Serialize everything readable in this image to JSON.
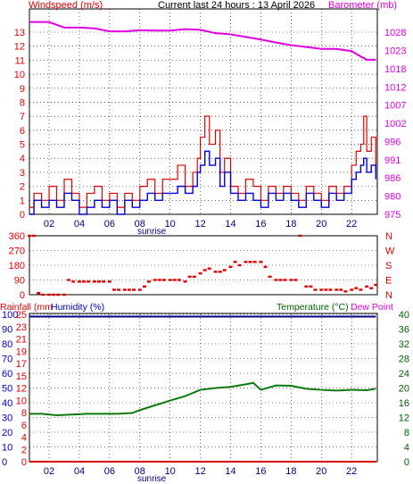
{
  "header": {
    "left_title": "Windspeed (m/s)",
    "center_title": "Current last 24 hours : 13 April 2026",
    "right_title": "Barometer (mb)"
  },
  "middle_panel": {
    "left_ticks": [
      "360",
      "270",
      "180",
      "90",
      "0"
    ],
    "right_ticks": [
      "N",
      "W",
      "S",
      "E",
      "N"
    ]
  },
  "bottom_header": {
    "rainfall": "Rainfall (mm",
    "humidity": "Humidity (%)",
    "temperature": "Temperature (°C)",
    "dew_point": "Dew Point"
  },
  "sunrise_label": "sunrise",
  "colors": {
    "wind_gust": "#e00000",
    "wind_avg": "#0000d8",
    "barometer": "#e000e0",
    "direction": "#e00000",
    "humidity": "#000080",
    "temperature": "#0c7a0c",
    "rainfall": "#e00000",
    "humidity_label": "#0000c0",
    "temperature_label": "#006000",
    "dew_label": "#e000e0",
    "grid": "#000000"
  },
  "chart_data": [
    {
      "type": "line",
      "x_ticks": [
        "02",
        "04",
        "06",
        "08",
        "10",
        "12",
        "14",
        "16",
        "18",
        "20",
        "22"
      ],
      "xlim": [
        0.7,
        23.7
      ],
      "y_left_ticks": [
        "0",
        "1",
        "2",
        "3",
        "4",
        "5",
        "6",
        "7",
        "8",
        "9",
        "10",
        "11",
        "12",
        "13"
      ],
      "ylim_left": [
        0,
        13
      ],
      "y_right_ticks": [
        "975",
        "980",
        "986",
        "991",
        "996",
        "1002",
        "1007",
        "1012",
        "1018",
        "1023",
        "1028"
      ],
      "ylim_right": [
        975,
        1030
      ],
      "series": [
        {
          "axis": "left",
          "x": [
            0.7,
            1.0,
            1.5,
            2.0,
            2.5,
            3.0,
            3.5,
            4.0,
            4.5,
            5.0,
            5.5,
            6.0,
            6.5,
            7.0,
            7.5,
            8.0,
            8.5,
            9.0,
            9.5,
            10.0,
            10.5,
            11.0,
            11.5,
            11.8,
            12.0,
            12.3,
            12.6,
            13.0,
            13.3,
            13.6,
            14.0,
            14.5,
            15.0,
            15.5,
            16.0,
            16.5,
            17.0,
            17.5,
            18.0,
            18.5,
            19.0,
            19.5,
            20.0,
            20.5,
            21.0,
            21.5,
            22.0,
            22.3,
            22.6,
            22.8,
            23.0,
            23.3,
            23.6
          ],
          "values": [
            0.5,
            1.5,
            1.0,
            2.0,
            1.0,
            2.5,
            1.5,
            0.5,
            1.5,
            2.0,
            1.0,
            1.5,
            0.5,
            1.5,
            1.0,
            2.0,
            2.5,
            1.5,
            2.5,
            2.5,
            3.5,
            2.0,
            3.0,
            4.0,
            5.5,
            7.0,
            5.0,
            6.0,
            3.0,
            4.0,
            2.0,
            1.5,
            2.5,
            2.0,
            1.0,
            2.0,
            1.5,
            2.0,
            1.5,
            1.0,
            2.0,
            1.5,
            1.0,
            2.0,
            1.5,
            2.0,
            3.5,
            4.5,
            5.0,
            7.0,
            4.5,
            5.5,
            3.0
          ]
        },
        {
          "axis": "left",
          "x": [
            0.7,
            1.0,
            1.5,
            2.0,
            2.5,
            3.0,
            3.5,
            4.0,
            4.5,
            5.0,
            5.5,
            6.0,
            6.5,
            7.0,
            7.5,
            8.0,
            8.5,
            9.0,
            9.5,
            10.0,
            10.5,
            11.0,
            11.5,
            11.8,
            12.0,
            12.3,
            12.6,
            13.0,
            13.3,
            13.6,
            14.0,
            14.5,
            15.0,
            15.5,
            16.0,
            16.5,
            17.0,
            17.5,
            18.0,
            18.5,
            19.0,
            19.5,
            20.0,
            20.5,
            21.0,
            21.5,
            22.0,
            22.3,
            22.6,
            22.8,
            23.0,
            23.3,
            23.6
          ],
          "values": [
            0.0,
            1.0,
            0.5,
            1.0,
            0.5,
            1.5,
            1.0,
            0.0,
            0.5,
            1.0,
            0.5,
            1.0,
            0.0,
            1.0,
            0.5,
            1.0,
            1.5,
            1.0,
            1.5,
            1.5,
            2.0,
            1.5,
            2.0,
            3.0,
            3.5,
            4.5,
            3.5,
            4.0,
            2.0,
            3.0,
            1.5,
            1.0,
            1.5,
            1.0,
            0.5,
            1.5,
            1.0,
            1.5,
            1.0,
            0.5,
            1.5,
            1.0,
            0.5,
            1.5,
            1.0,
            1.5,
            2.5,
            3.0,
            3.5,
            4.0,
            3.0,
            3.5,
            2.5
          ]
        },
        {
          "axis": "right",
          "x": [
            0.7,
            2.0,
            3.0,
            4.0,
            5.0,
            6.0,
            7.0,
            8.0,
            9.0,
            10.0,
            11.0,
            12.0,
            13.0,
            14.0,
            15.0,
            16.0,
            17.0,
            18.0,
            19.0,
            20.0,
            21.0,
            22.0,
            22.5,
            23.0,
            23.6
          ],
          "values": [
            1026.5,
            1026.5,
            1025.0,
            1025.0,
            1024.8,
            1024.0,
            1024.0,
            1024.3,
            1024.2,
            1024.2,
            1024.6,
            1024.4,
            1023.5,
            1023.2,
            1022.5,
            1021.8,
            1021.0,
            1020.3,
            1019.8,
            1019.3,
            1019.3,
            1018.7,
            1017.5,
            1016.4,
            1016.4
          ]
        }
      ]
    },
    {
      "type": "scatter",
      "x_ticks": [],
      "xlim": [
        0.7,
        23.7
      ],
      "ylim": [
        0,
        360
      ],
      "series": [
        {
          "x": [
            0.7,
            1.0,
            1.3,
            1.6,
            2.0,
            2.3,
            2.6,
            3.0,
            3.3,
            3.6,
            4.0,
            4.3,
            4.6,
            5.0,
            5.3,
            5.6,
            6.0,
            6.3,
            6.6,
            7.0,
            7.3,
            7.6,
            8.0,
            8.3,
            8.6,
            9.0,
            9.3,
            9.6,
            10.0,
            10.3,
            10.6,
            11.0,
            11.3,
            11.6,
            12.0,
            12.3,
            12.6,
            13.0,
            13.3,
            13.6,
            14.0,
            14.3,
            14.6,
            15.0,
            15.3,
            15.6,
            16.0,
            16.3,
            16.6,
            17.0,
            17.3,
            17.6,
            18.0,
            18.3,
            18.6,
            19.0,
            19.3,
            19.6,
            20.0,
            20.3,
            20.6,
            21.0,
            21.3,
            21.6,
            22.0,
            22.3,
            22.6,
            23.0,
            23.3,
            23.6
          ],
          "values": [
            360,
            360,
            10,
            0,
            0,
            0,
            0,
            0,
            90,
            80,
            80,
            80,
            80,
            80,
            80,
            80,
            80,
            30,
            30,
            30,
            30,
            30,
            30,
            50,
            80,
            90,
            90,
            90,
            90,
            90,
            90,
            80,
            110,
            110,
            130,
            150,
            160,
            140,
            140,
            150,
            170,
            200,
            180,
            200,
            200,
            200,
            200,
            170,
            110,
            90,
            90,
            90,
            90,
            90,
            360,
            50,
            50,
            30,
            30,
            30,
            30,
            30,
            30,
            20,
            30,
            40,
            30,
            50,
            40,
            60
          ]
        }
      ]
    },
    {
      "type": "line",
      "x_ticks": [
        "02",
        "04",
        "06",
        "08",
        "10",
        "12",
        "14",
        "16",
        "18",
        "20",
        "22"
      ],
      "xlim": [
        0.7,
        23.7
      ],
      "y_left_ticks": [
        "0",
        "10",
        "20",
        "30",
        "40",
        "50",
        "60",
        "70",
        "80",
        "90",
        "100"
      ],
      "y_left_ticks_rainfall": [
        "0",
        "2",
        "4",
        "6",
        "8",
        "10",
        "12",
        "15",
        "17",
        "19",
        "21",
        "23",
        "25"
      ],
      "ylim_left": [
        0,
        100
      ],
      "y_right_ticks": [
        "0",
        "4",
        "8",
        "12",
        "16",
        "20",
        "24",
        "28",
        "32",
        "36",
        "40"
      ],
      "ylim_right": [
        0,
        40
      ],
      "series": [
        {
          "axis": "left",
          "x": [
            0.7,
            23.6
          ],
          "values": [
            98.5,
            98.5
          ]
        },
        {
          "axis": "right",
          "x": [
            0.7,
            1.5,
            2.5,
            3.5,
            4.5,
            5.5,
            6.5,
            7.5,
            8.0,
            9.0,
            10.0,
            11.0,
            12.0,
            13.0,
            14.0,
            15.0,
            15.5,
            16.0,
            17.0,
            18.0,
            19.0,
            20.0,
            21.0,
            22.0,
            23.0,
            23.6
          ],
          "values": [
            13.0,
            13.0,
            12.6,
            12.8,
            13.0,
            13.0,
            13.0,
            13.2,
            14.0,
            15.3,
            16.6,
            17.8,
            19.5,
            20.0,
            20.3,
            21.0,
            21.4,
            19.5,
            20.7,
            20.6,
            19.8,
            19.5,
            19.3,
            19.5,
            19.4,
            19.8
          ]
        },
        {
          "axis": "left",
          "x": [
            0.7,
            23.6
          ],
          "values": [
            0,
            0
          ]
        }
      ]
    }
  ]
}
